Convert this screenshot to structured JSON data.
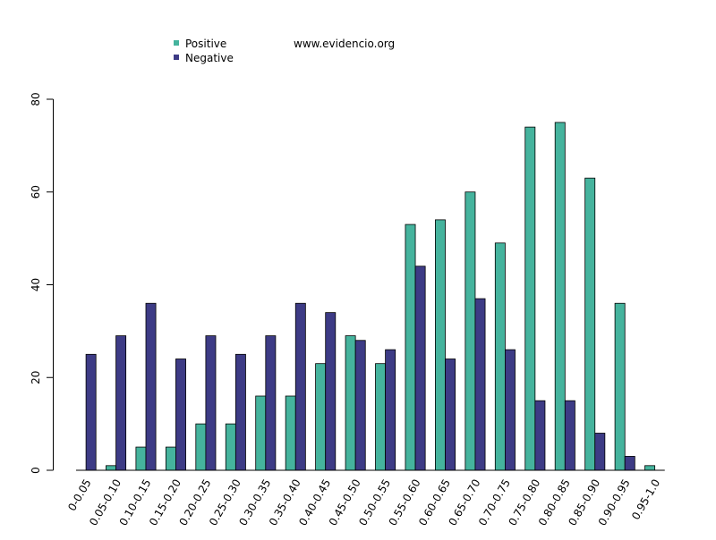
{
  "watermark": "www.evidencio.org",
  "colors": {
    "positive": "#45b39d",
    "negative": "#3d3b85",
    "outline": "#000000"
  },
  "chart_data": {
    "type": "bar",
    "title": "",
    "xlabel": "",
    "ylabel": "",
    "ylim": [
      0,
      80
    ],
    "yticks": [
      0,
      20,
      40,
      60,
      80
    ],
    "grid": false,
    "legend_position": "top-left",
    "categories": [
      "0-0.05",
      "0.05-0.10",
      "0.10-0.15",
      "0.15-0.20",
      "0.20-0.25",
      "0.25-0.30",
      "0.30-0.35",
      "0.35-0.40",
      "0.40-0.45",
      "0.45-0.50",
      "0.50-0.55",
      "0.55-0.60",
      "0.60-0.65",
      "0.65-0.70",
      "0.70-0.75",
      "0.75-0.80",
      "0.80-0.85",
      "0.85-0.90",
      "0.90-0.95",
      "0.95-1.0"
    ],
    "series": [
      {
        "name": "Positive",
        "values": [
          0,
          1,
          5,
          5,
          10,
          10,
          16,
          16,
          23,
          29,
          23,
          53,
          54,
          60,
          49,
          74,
          75,
          63,
          36,
          1
        ]
      },
      {
        "name": "Negative",
        "values": [
          25,
          29,
          36,
          24,
          29,
          25,
          29,
          36,
          34,
          28,
          26,
          44,
          24,
          37,
          26,
          15,
          15,
          8,
          3,
          0
        ]
      }
    ]
  }
}
